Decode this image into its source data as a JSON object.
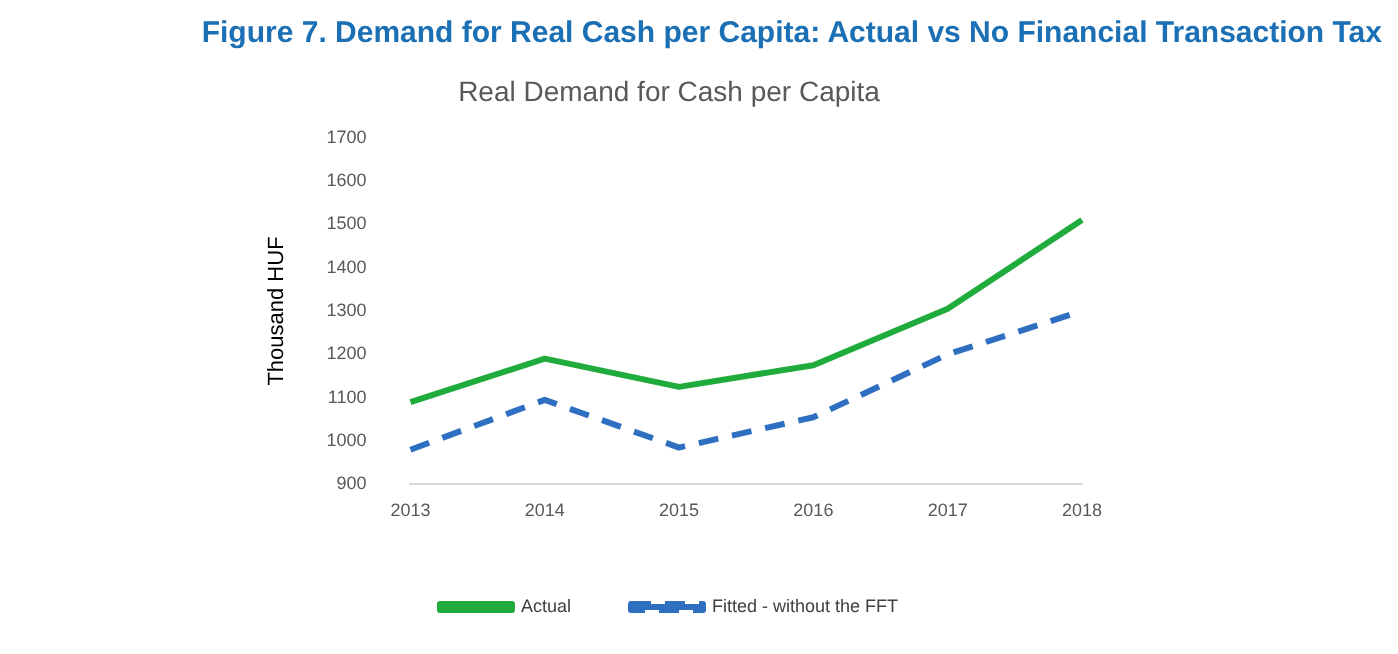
{
  "chart_data": {
    "type": "line",
    "title": "Figure 7. Demand for Real Cash per Capita: Actual vs No Financial Transaction Tax",
    "subtitle": "Real Demand for Cash per Capita",
    "ylabel": "Thousand HUF",
    "categories": [
      "2013",
      "2014",
      "2015",
      "2016",
      "2017",
      "2018"
    ],
    "series": [
      {
        "name": "Actual",
        "color": "#1fac3c",
        "values": [
          1090,
          1190,
          1125,
          1175,
          1305,
          1510
        ]
      },
      {
        "name": "Fitted - without the FFT",
        "color": "#2f6fc1",
        "line_style": "dashed",
        "values": [
          980,
          1095,
          985,
          1055,
          1200,
          1300
        ]
      }
    ],
    "ylim": [
      900,
      1700
    ],
    "yticks": [
      900,
      1000,
      1100,
      1200,
      1300,
      1400,
      1500,
      1600,
      1700
    ],
    "grid": false,
    "legend": "bottom",
    "marker": "none"
  }
}
